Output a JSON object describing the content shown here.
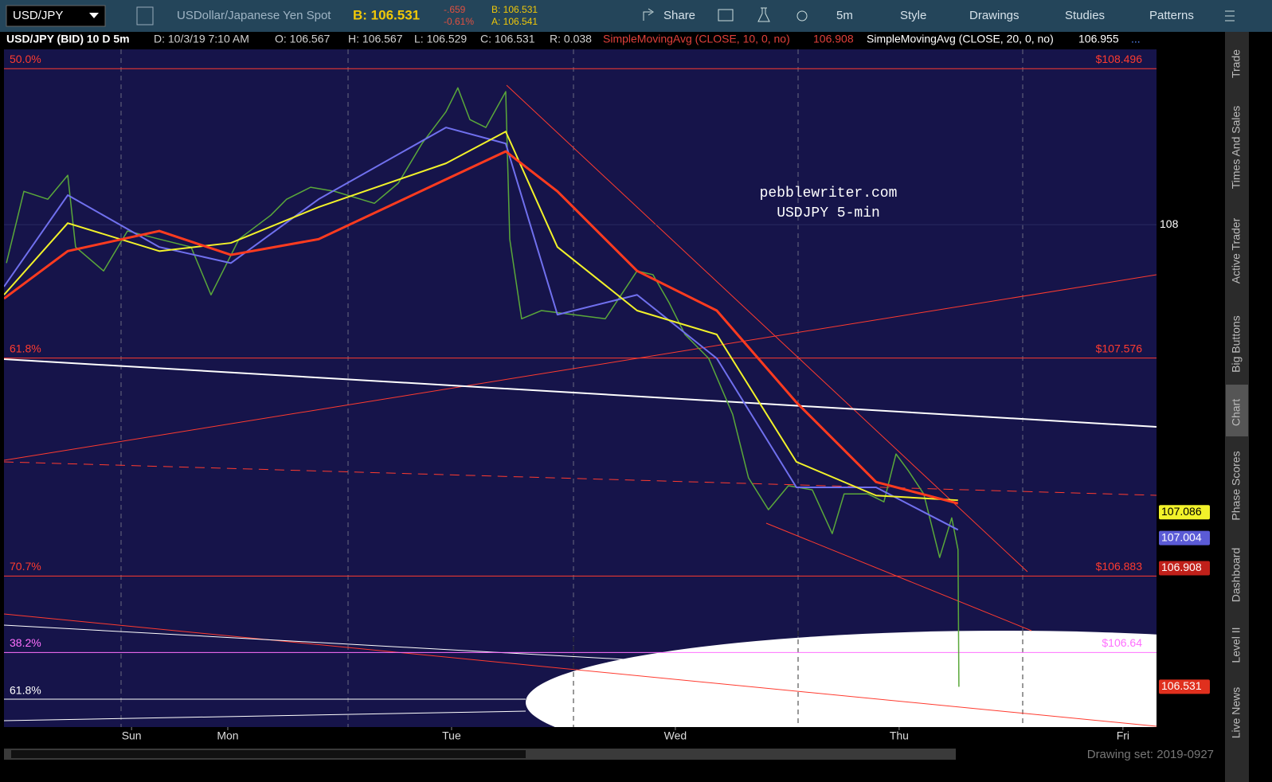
{
  "toolbar": {
    "symbol": "USD/JPY",
    "description": "USDollar/Japanese Yen Spot",
    "bid": "B: 106.531",
    "change": "-.659",
    "change_pct": "-0.61%",
    "bid_small": "B: 106.531",
    "ask_small": "A: 106.541",
    "buttons": [
      "Share",
      "5m",
      "Style",
      "Drawings",
      "Studies",
      "Patterns"
    ]
  },
  "info_bar": {
    "symbol": "USD/JPY (BID) 10 D 5m",
    "date": "D: 10/3/19 7:10 AM",
    "open": "O: 106.567",
    "high": "H: 106.567",
    "low": "L: 106.529",
    "close": "C: 106.531",
    "range": "R: 0.038",
    "study1": "SimpleMovingAvg (CLOSE, 10, 0, no)",
    "study1_value": "106.908",
    "study2": "SimpleMovingAvg (CLOSE, 20, 0, no)",
    "study2_value": "106.955",
    "more": "..."
  },
  "annotation": [
    "pebblewriter.com",
    "USDJPY 5-min"
  ],
  "lower_level_label": "61.8%",
  "side_tabs": [
    "Trade",
    "Times And Sales",
    "Active Trader",
    "Big Buttons",
    "Chart",
    "Phase Scores",
    "Dashboard",
    "Level II",
    "Live News"
  ],
  "footer": "Drawing set: 2019-0927",
  "chart_data": {
    "type": "line",
    "ylim": [
      106.403,
      108.613
    ],
    "yticks": [
      108
    ],
    "xlim": [
      -1.0,
      4.15
    ],
    "xticks": [
      {
        "value": -0.43,
        "label": "Sun"
      },
      {
        "value": 0,
        "label": "Mon"
      },
      {
        "value": 1,
        "label": "Tue"
      },
      {
        "value": 2,
        "label": "Wed"
      },
      {
        "value": 3,
        "label": "Thu"
      },
      {
        "value": 4,
        "label": "Fri"
      }
    ],
    "series": [
      {
        "name": "Price",
        "color": "#5aa83a",
        "width": 1.5,
        "x": [
          -0.989,
          -0.911,
          -0.804,
          -0.715,
          -0.68,
          -0.555,
          -0.448,
          -0.306,
          -0.164,
          -0.075,
          0.05,
          0.192,
          0.263,
          0.37,
          0.477,
          0.655,
          0.762,
          0.868,
          0.975,
          1.028,
          1.082,
          1.153,
          1.242,
          1.26,
          1.313,
          1.402,
          1.544,
          1.687,
          1.829,
          1.9,
          1.972,
          2.043,
          2.149,
          2.256,
          2.327,
          2.416,
          2.505,
          2.612,
          2.701,
          2.754,
          2.861,
          2.932,
          2.986,
          3.039,
          3.11,
          3.181,
          3.235,
          3.263,
          3.267
        ],
        "values": [
          107.878,
          108.106,
          108.081,
          108.157,
          107.929,
          107.853,
          107.98,
          107.954,
          107.929,
          107.777,
          107.954,
          108.03,
          108.081,
          108.119,
          108.106,
          108.068,
          108.132,
          108.258,
          108.359,
          108.435,
          108.334,
          108.309,
          108.423,
          107.954,
          107.701,
          107.727,
          107.714,
          107.701,
          107.853,
          107.841,
          107.752,
          107.651,
          107.575,
          107.397,
          107.195,
          107.094,
          107.17,
          107.157,
          107.018,
          107.144,
          107.144,
          107.119,
          107.271,
          107.22,
          107.144,
          106.942,
          107.068,
          106.967,
          106.531
        ]
      },
      {
        "name": "Blue MA",
        "color": "#7070ee",
        "width": 2,
        "x": [
          -1.0,
          -0.715,
          -0.306,
          0.014,
          0.406,
          0.975,
          1.242,
          1.473,
          1.829,
          2.185,
          2.541,
          2.897,
          3.263
        ],
        "values": [
          107.803,
          108.094,
          107.929,
          107.878,
          108.081,
          108.309,
          108.258,
          107.714,
          107.777,
          107.575,
          107.165,
          107.165,
          107.03
        ]
      },
      {
        "name": "Yellow MA",
        "color": "#f2f22a",
        "width": 2,
        "x": [
          -1.0,
          -0.715,
          -0.306,
          0.014,
          0.406,
          0.975,
          1.242,
          1.473,
          1.829,
          2.185,
          2.541,
          2.897,
          3.263
        ],
        "values": [
          107.777,
          108.005,
          107.916,
          107.942,
          108.056,
          108.195,
          108.296,
          107.929,
          107.727,
          107.651,
          107.246,
          107.139,
          107.124
        ]
      },
      {
        "name": "Red MA",
        "color": "#ff3b1f",
        "width": 3,
        "x": [
          -1.0,
          -0.715,
          -0.306,
          0.014,
          0.406,
          0.975,
          1.242,
          1.473,
          1.829,
          2.185,
          2.541,
          2.897,
          3.263
        ],
        "values": [
          107.765,
          107.916,
          107.98,
          107.904,
          107.954,
          108.144,
          108.233,
          108.106,
          107.853,
          107.727,
          107.435,
          107.182,
          107.114
        ]
      }
    ],
    "levels": [
      {
        "pct": "50.0%",
        "value": 108.496,
        "label": "$108.496",
        "color": "#ff3b2f"
      },
      {
        "pct": "61.8%",
        "value": 107.576,
        "label": "$107.576",
        "color": "#ff3b2f"
      },
      {
        "pct": "70.7%",
        "value": 106.883,
        "label": "$106.883",
        "color": "#ff3b2f"
      },
      {
        "pct": "38.2%",
        "value": 106.64,
        "label": "$106.64",
        "color": "#ff70ff"
      }
    ],
    "badges": [
      {
        "value": 107.086,
        "label": "107.086",
        "color": "#f2f22a",
        "text_color": "#000000"
      },
      {
        "value": 107.004,
        "label": "107.004",
        "color": "#5b5bd6",
        "text_color": "#ffffff"
      },
      {
        "value": 106.908,
        "label": "106.908",
        "color": "#c0201a",
        "text_color": "#ffffff"
      },
      {
        "value": 106.531,
        "label": "106.531",
        "color": "#e0301e",
        "text_color": "#ffffff"
      }
    ]
  }
}
